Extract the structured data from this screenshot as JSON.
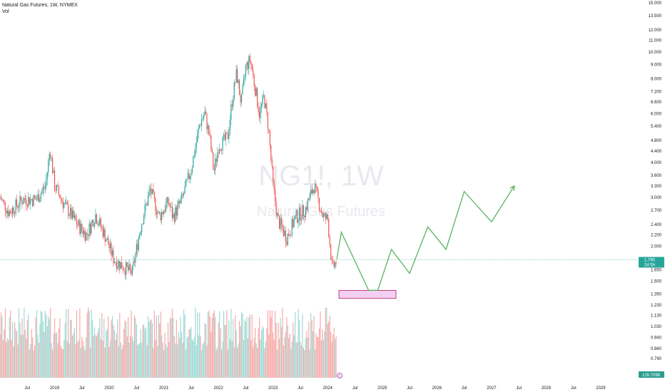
{
  "legend": {
    "symbol_line": "Natural Gas Futures, 1W, NYMEX",
    "volume_label": "Vol"
  },
  "watermark": {
    "ticker": "NG1!, 1W",
    "name": "Natural Gas Futures"
  },
  "price_badge": {
    "price": "1.790",
    "countdown": "2d 5h"
  },
  "volume_badge": "126.709K",
  "marker_label": "E",
  "colors": {
    "up": "#26a69a",
    "down": "#ef5350",
    "up_volume": "#9ed9d4",
    "down_volume": "#f7a9a7",
    "projection": "#4caf50",
    "price_line": "#26a69a",
    "zone_fill": "#f3d0f1",
    "zone_border": "#b71c5e",
    "volume_badge_bg": "#2a9d8f",
    "marker": "#9c27b0"
  },
  "chart_data": {
    "type": "candlestick",
    "timeframe": "1W",
    "scale": "log",
    "y_ticks": [
      15.0,
      13.5,
      12.0,
      11.0,
      10.0,
      9.0,
      8.0,
      7.2,
      6.6,
      6.0,
      5.4,
      4.8,
      4.4,
      4.0,
      3.6,
      3.3,
      3.0,
      2.7,
      2.4,
      2.2,
      2.0,
      1.79,
      1.65,
      1.5,
      1.35,
      1.23,
      1.13,
      1.03,
      0.94,
      0.86,
      0.79
    ],
    "y_tick_labels": [
      "15.000",
      "13.500",
      "12.000",
      "11.000",
      "10.000",
      "9.000",
      "8.000",
      "7.200",
      "6.600",
      "6.000",
      "5.400",
      "4.800",
      "4.400",
      "4.000",
      "3.600",
      "3.300",
      "3.000",
      "2.700",
      "2.400",
      "2.200",
      "2.000",
      "1.790",
      "1.650",
      "1.500",
      "1.350",
      "1.230",
      "1.130",
      "1.030",
      "0.940",
      "0.860",
      "0.790"
    ],
    "x_ticks": [
      {
        "date": "2018-07",
        "label": "Jul"
      },
      {
        "date": "2019-01",
        "label": "2019"
      },
      {
        "date": "2019-07",
        "label": "Jul"
      },
      {
        "date": "2020-01",
        "label": "2020"
      },
      {
        "date": "2020-07",
        "label": "Jul"
      },
      {
        "date": "2021-01",
        "label": "2021"
      },
      {
        "date": "2021-07",
        "label": "Jul"
      },
      {
        "date": "2022-01",
        "label": "2022"
      },
      {
        "date": "2022-07",
        "label": "Jul"
      },
      {
        "date": "2023-01",
        "label": "2023"
      },
      {
        "date": "2023-07",
        "label": "Jul"
      },
      {
        "date": "2024-01",
        "label": "2024"
      },
      {
        "date": "2024-07",
        "label": "Jul"
      },
      {
        "date": "2025-01",
        "label": "2025"
      },
      {
        "date": "2025-07",
        "label": "Jul"
      },
      {
        "date": "2026-01",
        "label": "2026"
      },
      {
        "date": "2026-07",
        "label": "Jul"
      },
      {
        "date": "2027-01",
        "label": "2027"
      },
      {
        "date": "2027-07",
        "label": "Jul"
      },
      {
        "date": "2028-01",
        "label": "2028"
      },
      {
        "date": "2028-07",
        "label": "Jul"
      },
      {
        "date": "2029-01",
        "label": "2029"
      }
    ],
    "x_range": [
      "2018-01",
      "2029-09"
    ],
    "y_range": [
      0.75,
      15.0
    ],
    "last_price": 1.79,
    "price_path": [
      [
        "2018-01",
        3.0
      ],
      [
        "2018-03",
        2.65
      ],
      [
        "2018-06",
        2.95
      ],
      [
        "2018-09",
        2.95
      ],
      [
        "2018-11",
        3.3
      ],
      [
        "2018-12",
        4.5
      ],
      [
        "2019-01",
        3.3
      ],
      [
        "2019-03",
        2.85
      ],
      [
        "2019-06",
        2.4
      ],
      [
        "2019-08",
        2.2
      ],
      [
        "2019-10",
        2.6
      ],
      [
        "2019-12",
        2.2
      ],
      [
        "2020-02",
        1.8
      ],
      [
        "2020-04",
        1.7
      ],
      [
        "2020-06",
        1.6
      ],
      [
        "2020-08",
        2.4
      ],
      [
        "2020-10",
        3.2
      ],
      [
        "2020-12",
        2.55
      ],
      [
        "2021-02",
        2.9
      ],
      [
        "2021-03",
        2.55
      ],
      [
        "2021-05",
        2.95
      ],
      [
        "2021-07",
        3.8
      ],
      [
        "2021-09",
        5.6
      ],
      [
        "2021-10",
        6.0
      ],
      [
        "2021-11",
        5.0
      ],
      [
        "2021-12",
        3.7
      ],
      [
        "2022-01",
        4.6
      ],
      [
        "2022-03",
        4.9
      ],
      [
        "2022-04",
        6.7
      ],
      [
        "2022-05",
        8.4
      ],
      [
        "2022-06",
        6.5
      ],
      [
        "2022-07",
        8.8
      ],
      [
        "2022-08",
        9.4
      ],
      [
        "2022-09",
        7.5
      ],
      [
        "2022-10",
        6.0
      ],
      [
        "2022-11",
        6.9
      ],
      [
        "2022-12",
        5.3
      ],
      [
        "2023-01",
        3.3
      ],
      [
        "2023-02",
        2.5
      ],
      [
        "2023-04",
        2.15
      ],
      [
        "2023-06",
        2.55
      ],
      [
        "2023-08",
        2.7
      ],
      [
        "2023-10",
        3.3
      ],
      [
        "2023-11",
        2.9
      ],
      [
        "2023-12",
        2.55
      ],
      [
        "2024-01",
        2.5
      ],
      [
        "2024-02",
        1.65
      ],
      [
        "2024-03",
        1.79
      ]
    ],
    "volume_scale": "relative",
    "annotations": {
      "support_zone": {
        "x_start": "2024-03",
        "x_end": "2025-04",
        "y_low": 1.3,
        "y_high": 1.39
      },
      "projection_path": [
        [
          "2024-03",
          1.8
        ],
        [
          "2024-04",
          2.25
        ],
        [
          "2024-10",
          1.39
        ],
        [
          "2024-12",
          1.39
        ],
        [
          "2025-03",
          1.95
        ],
        [
          "2025-07",
          1.6
        ],
        [
          "2025-11",
          2.35
        ],
        [
          "2026-03",
          1.95
        ],
        [
          "2026-07",
          3.15
        ],
        [
          "2027-01",
          2.45
        ],
        [
          "2027-06",
          3.3
        ]
      ]
    }
  }
}
